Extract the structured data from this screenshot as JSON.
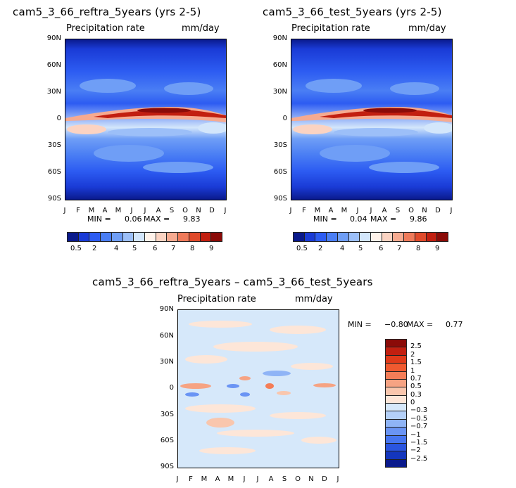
{
  "chart_data": [
    {
      "type": "heatmap",
      "title": "cam5_3_66_reftra_5years (yrs 2-5)",
      "subtitle_left": "Precipitation rate",
      "subtitle_right": "mm/day",
      "x_ticks": [
        "J",
        "F",
        "M",
        "A",
        "M",
        "J",
        "J",
        "A",
        "S",
        "O",
        "N",
        "D",
        "J"
      ],
      "y_ticks": [
        "90N",
        "60N",
        "30N",
        "0",
        "30S",
        "60S",
        "90S"
      ],
      "min_label": "MIN =",
      "min_value": "0.06",
      "max_label": "MAX =",
      "max_value": "9.83",
      "colorbar_labels": [
        "0.5",
        "2",
        "4",
        "5",
        "6",
        "7",
        "8",
        "9"
      ],
      "colorbar_colors": [
        "#0a1a8c",
        "#1a3bd6",
        "#2d5cf2",
        "#4a7ef4",
        "#6f9ef6",
        "#9cbff8",
        "#d3e6fb",
        "#fff2ea",
        "#fbd3c2",
        "#f6aa90",
        "#ef7a5a",
        "#e04a2b",
        "#c21f10",
        "#8b0b08"
      ]
    },
    {
      "type": "heatmap",
      "title": "cam5_3_66_test_5years (yrs 2-5)",
      "subtitle_left": "Precipitation rate",
      "subtitle_right": "mm/day",
      "x_ticks": [
        "J",
        "F",
        "M",
        "A",
        "M",
        "J",
        "J",
        "A",
        "S",
        "O",
        "N",
        "D",
        "J"
      ],
      "y_ticks": [
        "90N",
        "60N",
        "30N",
        "0",
        "30S",
        "60S",
        "90S"
      ],
      "min_label": "MIN =",
      "min_value": "0.04",
      "max_label": "MAX =",
      "max_value": "9.86",
      "colorbar_labels": [
        "0.5",
        "2",
        "4",
        "5",
        "6",
        "7",
        "8",
        "9"
      ],
      "colorbar_colors": [
        "#0a1a8c",
        "#1a3bd6",
        "#2d5cf2",
        "#4a7ef4",
        "#6f9ef6",
        "#9cbff8",
        "#d3e6fb",
        "#fff2ea",
        "#fbd3c2",
        "#f6aa90",
        "#ef7a5a",
        "#e04a2b",
        "#c21f10",
        "#8b0b08"
      ]
    },
    {
      "type": "heatmap",
      "title": "cam5_3_66_reftra_5years – cam5_3_66_test_5years",
      "subtitle_left": "Precipitation rate",
      "subtitle_right": "mm/day",
      "x_ticks": [
        "J",
        "F",
        "M",
        "A",
        "M",
        "J",
        "J",
        "A",
        "S",
        "O",
        "N",
        "D",
        "J"
      ],
      "y_ticks": [
        "90N",
        "60N",
        "30N",
        "0",
        "30S",
        "60S",
        "90S"
      ],
      "min_label": "MIN =",
      "min_value": "−0.80",
      "max_label": "MAX =",
      "max_value": "0.77",
      "colorbar_labels": [
        "2.5",
        "2",
        "1.5",
        "1",
        "0.7",
        "0.5",
        "0.3",
        "0",
        "−0.3",
        "−0.5",
        "−0.7",
        "−1",
        "−1.5",
        "−2",
        "−2.5"
      ],
      "colorbar_colors": [
        "#8b0b08",
        "#c21f10",
        "#e03a1a",
        "#f05a30",
        "#f47d57",
        "#f6a383",
        "#f9c6ad",
        "#fde6d8",
        "#d6e8fa",
        "#b4d0f8",
        "#8fb4f6",
        "#6a94f4",
        "#4675f0",
        "#2a55e0",
        "#1436bd",
        "#0a1a8c"
      ]
    }
  ]
}
